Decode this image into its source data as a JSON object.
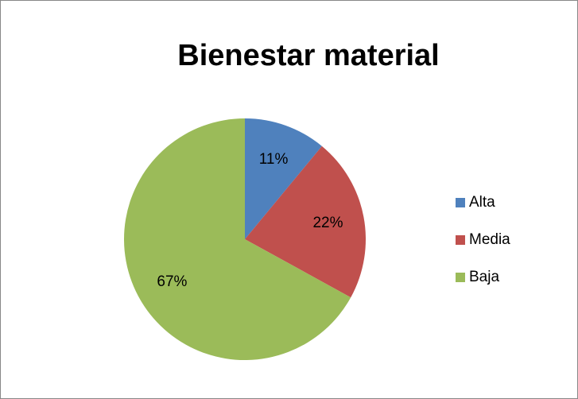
{
  "chart_data": {
    "type": "pie",
    "title": "Bienestar material",
    "categories": [
      "Alta",
      "Media",
      "Baja"
    ],
    "values": [
      11,
      22,
      67
    ],
    "value_labels": [
      "11%",
      "22%",
      "67%"
    ],
    "colors": [
      "#4f81bd",
      "#c0504d",
      "#9bbb59"
    ],
    "legend": "right"
  }
}
